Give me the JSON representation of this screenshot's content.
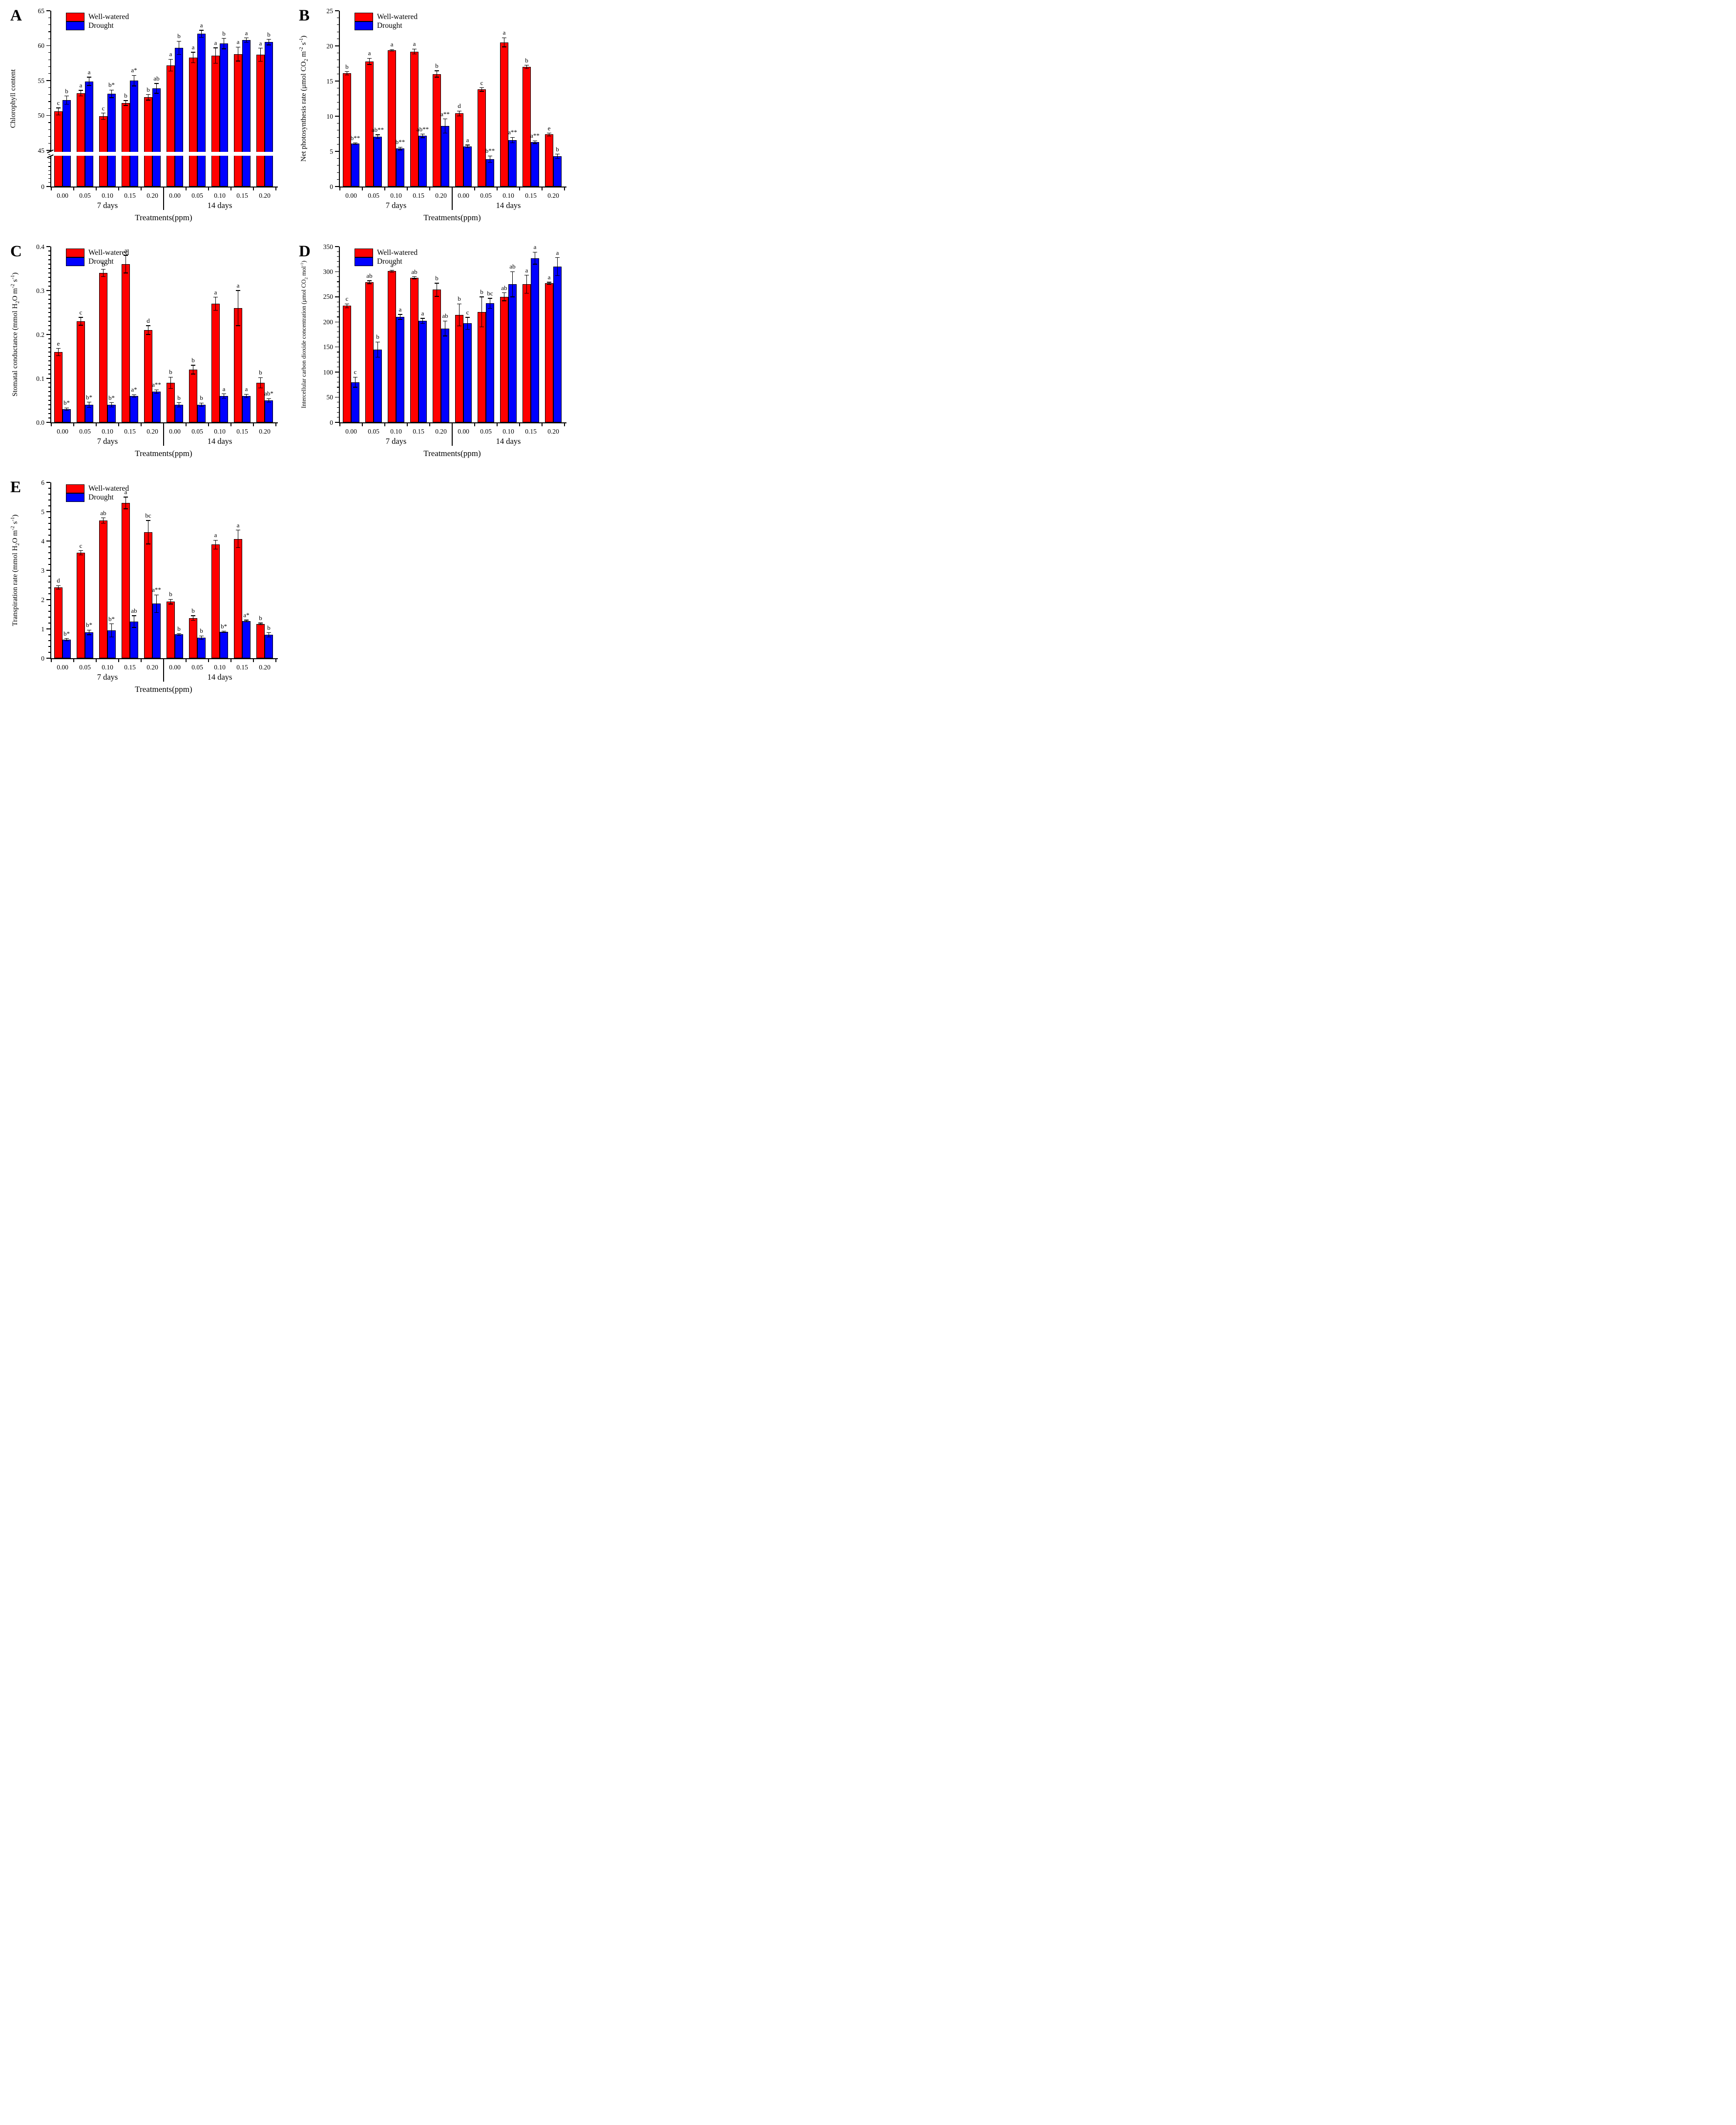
{
  "figure": {
    "background": "#ffffff",
    "legend": {
      "series1": "Well-watered",
      "series2": "Drought"
    },
    "colors": {
      "well_watered": "#ff0000",
      "drought": "#0000ff",
      "axis": "#000000",
      "error_bar": "#000000"
    }
  },
  "chart_data": [
    {
      "panel": "A",
      "type": "bar",
      "ylabel": "Chlorophyll content",
      "xlabel": "Treatments(ppm)",
      "categories": [
        "0.00",
        "0.05",
        "0.10",
        "0.15",
        "0.20"
      ],
      "groups": [
        "7 days",
        "14 days"
      ],
      "y_axis": {
        "max": 65,
        "majors": [
          0,
          45,
          50,
          55,
          60,
          65
        ],
        "labels": [
          "0",
          "45",
          "50",
          "55",
          "60",
          "65"
        ],
        "minor_step": 1,
        "axis_break": {
          "value": 45,
          "lower_fraction": 0.205,
          "minor_step_below": 5
        }
      },
      "series": [
        {
          "name": "Well-watered",
          "color": "#ff0000",
          "values": [
            50.6,
            53.2,
            49.9,
            51.8,
            52.6,
            57.2,
            58.3,
            58.6,
            58.8,
            58.7
          ],
          "errors": [
            0.5,
            0.4,
            0.45,
            0.35,
            0.4,
            0.85,
            0.75,
            1.1,
            1.0,
            0.95
          ],
          "letters": [
            "c",
            "a",
            "c",
            "b",
            "b",
            "a",
            "a",
            "a",
            "a",
            "a"
          ]
        },
        {
          "name": "Drought",
          "color": "#0000ff",
          "values": [
            52.2,
            54.9,
            53.1,
            55.0,
            53.9,
            59.7,
            61.7,
            60.3,
            60.8,
            60.5
          ],
          "errors": [
            0.6,
            0.6,
            0.55,
            0.75,
            0.7,
            0.95,
            0.5,
            0.75,
            0.3,
            0.4
          ],
          "letters": [
            "b",
            "a",
            "b*",
            "a*",
            "ab",
            "b",
            "a",
            "b",
            "a",
            "b"
          ]
        }
      ]
    },
    {
      "panel": "B",
      "type": "bar",
      "ylabel": "Net photosynthesis rate (μmol CO_2_ m^-2^ s^-1^)",
      "xlabel": "Treatments(ppm)",
      "categories": [
        "0.00",
        "0.05",
        "0.10",
        "0.15",
        "0.20"
      ],
      "groups": [
        "7 days",
        "14 days"
      ],
      "y_axis": {
        "max": 25,
        "majors": [
          0,
          5,
          10,
          15,
          20,
          25
        ],
        "labels": [
          "0",
          "5",
          "10",
          "15",
          "20",
          "25"
        ],
        "minor_step": 1
      },
      "series": [
        {
          "name": "Well-watered",
          "color": "#ff0000",
          "values": [
            16.1,
            17.8,
            19.4,
            19.2,
            16.0,
            10.4,
            13.8,
            20.5,
            17.0,
            7.4
          ],
          "errors": [
            0.25,
            0.45,
            0.1,
            0.35,
            0.45,
            0.35,
            0.25,
            0.65,
            0.25,
            0.2
          ],
          "letters": [
            "b",
            "a",
            "a",
            "a",
            "b",
            "d",
            "c",
            "a",
            "b",
            "e"
          ]
        },
        {
          "name": "Drought",
          "color": "#0000ff",
          "values": [
            6.1,
            7.1,
            5.4,
            7.2,
            8.6,
            5.7,
            3.9,
            6.6,
            6.3,
            4.3
          ],
          "errors": [
            0.1,
            0.25,
            0.2,
            0.25,
            1.0,
            0.2,
            0.45,
            0.4,
            0.2,
            0.3
          ],
          "letters": [
            "b**",
            "ab**",
            "b**",
            "ab**",
            "a**",
            "a",
            "b**",
            "a**",
            "a**",
            "b"
          ]
        }
      ]
    },
    {
      "panel": "C",
      "type": "bar",
      "ylabel": "Stomatal conductance (mmol H_2_O m^-2^ s^-1^)",
      "xlabel": "Treatments(ppm)",
      "categories": [
        "0.00",
        "0.05",
        "0.10",
        "0.15",
        "0.20"
      ],
      "groups": [
        "7 days",
        "14 days"
      ],
      "y_axis": {
        "max": 0.4,
        "majors": [
          0,
          0.1,
          0.2,
          0.3,
          0.4
        ],
        "labels": [
          "0.0",
          "0.1",
          "0.2",
          "0.3",
          "0.4"
        ],
        "minor_step": 0.01
      },
      "series": [
        {
          "name": "Well-watered",
          "color": "#ff0000",
          "values": [
            0.16,
            0.23,
            0.34,
            0.36,
            0.21,
            0.09,
            0.12,
            0.27,
            0.26,
            0.09
          ],
          "errors": [
            0.008,
            0.009,
            0.008,
            0.02,
            0.01,
            0.013,
            0.01,
            0.015,
            0.04,
            0.012
          ],
          "letters": [
            "e",
            "c",
            "b",
            "a",
            "d",
            "b",
            "b",
            "a",
            "a",
            "b"
          ]
        },
        {
          "name": "Drought",
          "color": "#0000ff",
          "values": [
            0.03,
            0.04,
            0.04,
            0.06,
            0.07,
            0.04,
            0.04,
            0.06,
            0.06,
            0.05
          ],
          "errors": [
            0.003,
            0.006,
            0.005,
            0.003,
            0.004,
            0.005,
            0.004,
            0.005,
            0.004,
            0.004
          ],
          "letters": [
            "b*",
            "b*",
            "b*",
            "a*",
            "a**",
            "b",
            "b",
            "a",
            "a",
            "ab*"
          ]
        }
      ]
    },
    {
      "panel": "D",
      "type": "bar",
      "ylabel": "Intercellular carbon dioxide concentration (μmol CO_2_ mol^-1^)",
      "xlabel": "Treatments(ppm)",
      "categories": [
        "0.00",
        "0.05",
        "0.10",
        "0.15",
        "0.20"
      ],
      "groups": [
        "7 days",
        "14 days"
      ],
      "y_axis": {
        "max": 350,
        "majors": [
          0,
          50,
          100,
          150,
          200,
          250,
          300,
          350
        ],
        "labels": [
          "0",
          "50",
          "100",
          "150",
          "200",
          "250",
          "300",
          "350"
        ],
        "minor_step": 10
      },
      "series": [
        {
          "name": "Well-watered",
          "color": "#ff0000",
          "values": [
            232,
            279,
            301,
            288,
            264,
            214,
            220,
            250,
            275,
            277
          ],
          "errors": [
            4,
            3,
            2,
            2,
            13,
            22,
            30,
            8,
            18,
            2
          ],
          "letters": [
            "c",
            "ab",
            "a",
            "ab",
            "b",
            "b",
            "b",
            "ab",
            "a",
            "a"
          ]
        },
        {
          "name": "Drought",
          "color": "#0000ff",
          "values": [
            80,
            145,
            210,
            202,
            187,
            197,
            237,
            275,
            327,
            310
          ],
          "errors": [
            10,
            15,
            5,
            5,
            15,
            12,
            10,
            25,
            12,
            18
          ],
          "letters": [
            "c",
            "b",
            "a",
            "a",
            "ab",
            "c",
            "bc",
            "ab",
            "a",
            "a"
          ]
        }
      ]
    },
    {
      "panel": "E",
      "type": "bar",
      "ylabel": "Transpiration rate  (mmol H_2_O m^-2^ s^-1^)",
      "xlabel": "Treatments(ppm)",
      "categories": [
        "0.00",
        "0.05",
        "0.10",
        "0.15",
        "0.20"
      ],
      "groups": [
        "7 days",
        "14 days"
      ],
      "y_axis": {
        "max": 6,
        "majors": [
          0,
          1,
          2,
          3,
          4,
          5,
          6
        ],
        "labels": [
          "0",
          "1",
          "2",
          "3",
          "4",
          "5",
          "6"
        ],
        "minor_step": 0.2
      },
      "series": [
        {
          "name": "Well-watered",
          "color": "#ff0000",
          "values": [
            2.42,
            3.6,
            4.7,
            5.3,
            4.3,
            1.93,
            1.37,
            3.88,
            4.07,
            1.17
          ],
          "errors": [
            0.06,
            0.07,
            0.09,
            0.2,
            0.4,
            0.08,
            0.08,
            0.15,
            0.3,
            0.03
          ],
          "letters": [
            "d",
            "c",
            "ab",
            "a",
            "bc",
            "b",
            "b",
            "a",
            "a",
            "b"
          ]
        },
        {
          "name": "Drought",
          "color": "#0000ff",
          "values": [
            0.63,
            0.88,
            0.95,
            1.25,
            1.86,
            0.81,
            0.7,
            0.9,
            1.27,
            0.8
          ],
          "errors": [
            0.04,
            0.08,
            0.22,
            0.2,
            0.3,
            0.03,
            0.06,
            0.02,
            0.03,
            0.07
          ],
          "letters": [
            "b*",
            "b*",
            "b*",
            "ab",
            "a**",
            "b",
            "b",
            "b*",
            "a*",
            "b"
          ]
        }
      ]
    }
  ]
}
